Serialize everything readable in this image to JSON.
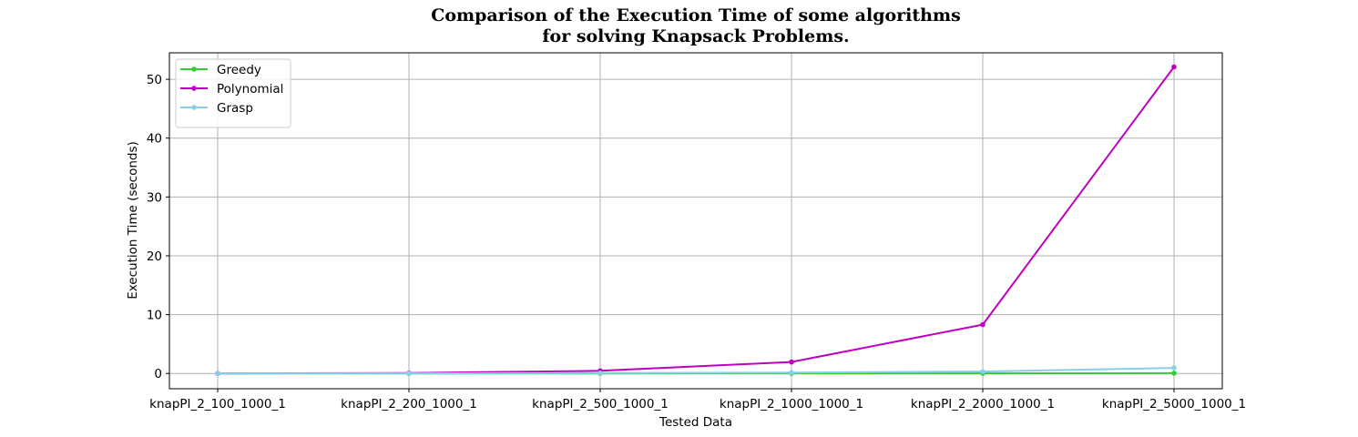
{
  "chart_data": {
    "type": "line",
    "title_lines": [
      "Comparison of the Execution Time of some algorithms",
      "for solving Knapsack Problems."
    ],
    "xlabel": "Tested Data",
    "ylabel": "Execution Time (seconds)",
    "categories": [
      "knapPI_2_100_1000_1",
      "knapPI_2_200_1000_1",
      "knapPI_2_500_1000_1",
      "knapPI_2_1000_1000_1",
      "knapPI_2_2000_1000_1",
      "knapPI_2_5000_1000_1"
    ],
    "ylim": [
      -2.6,
      54.5
    ],
    "yticks": [
      0,
      10,
      20,
      30,
      40,
      50
    ],
    "grid": true,
    "legend_position": "top-left",
    "series": [
      {
        "name": "Greedy",
        "color": "#32cd32",
        "values": [
          0.0,
          0.0,
          0.0,
          0.01,
          0.02,
          0.05
        ]
      },
      {
        "name": "Polynomial",
        "color": "#c000c0",
        "values": [
          0.02,
          0.08,
          0.45,
          1.95,
          8.3,
          52.1
        ]
      },
      {
        "name": "Grasp",
        "color": "#87ceeb",
        "values": [
          0.01,
          0.02,
          0.07,
          0.15,
          0.32,
          0.95
        ]
      }
    ]
  }
}
